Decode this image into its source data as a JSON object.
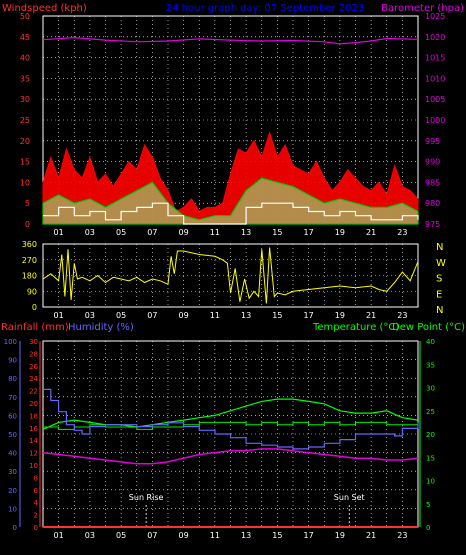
{
  "header": {
    "left_label": "Windspeed (kph)",
    "center_label": "24 hour graph day: 07 September 2023",
    "right_label": "Barometer (hpa)"
  },
  "colors": {
    "background": "#000000",
    "grid": "#ffffff",
    "wind_axis": "#ff3030",
    "baro_axis": "#e000e0",
    "wind_gust": "#ff0000",
    "wind_avg": "#00cc00",
    "wind_min": "#ffffff",
    "baro_line": "#e000e0",
    "direction": "#ffff00",
    "temp": "#00ff00",
    "dew": "#00ee00",
    "humidity": "#6666ff",
    "rain": "#ff3030",
    "title": "#0000ff"
  },
  "chart_data": [
    {
      "type": "line",
      "hours": [
        "01",
        "03",
        "05",
        "07",
        "09",
        "11",
        "13",
        "15",
        "17",
        "19",
        "21",
        "23"
      ],
      "left_axis": {
        "label": "Windspeed (kph)",
        "ticks": [
          0,
          5,
          10,
          15,
          20,
          25,
          30,
          35,
          40,
          45,
          50
        ],
        "range": [
          0,
          50
        ]
      },
      "right_axis": {
        "label": "Barometer (hpa)",
        "ticks": [
          975,
          980,
          985,
          990,
          995,
          1000,
          1005,
          1010,
          1015,
          1020,
          1025
        ],
        "range": [
          975,
          1025
        ]
      },
      "series": [
        {
          "role": "gust",
          "x": [
            0,
            0.5,
            1,
            1.5,
            2,
            2.5,
            3,
            3.5,
            4,
            4.5,
            5,
            5.5,
            6,
            6.5,
            7,
            7.5,
            8,
            8.5,
            9,
            9.5,
            10,
            10.5,
            11,
            11.5,
            12,
            12.5,
            13,
            13.5,
            14,
            14.5,
            15,
            15.5,
            16,
            16.5,
            17,
            17.5,
            18,
            18.5,
            19,
            19.5,
            20,
            20.5,
            21,
            21.5,
            22,
            22.5,
            23,
            23.5,
            24
          ],
          "y": [
            10,
            16,
            11,
            18,
            13,
            11,
            16,
            10,
            12,
            9,
            12,
            15,
            13,
            19,
            16,
            11,
            8,
            3,
            4,
            6,
            3,
            4,
            4,
            5,
            12,
            18,
            17,
            20,
            16,
            22,
            16,
            19,
            14,
            13,
            12,
            15,
            11,
            8,
            10,
            13,
            11,
            9,
            8,
            10,
            7,
            14,
            9,
            8,
            6
          ]
        },
        {
          "role": "average",
          "x": [
            0,
            1,
            2,
            3,
            4,
            5,
            6,
            7,
            8,
            9,
            10,
            11,
            12,
            13,
            14,
            15,
            16,
            17,
            18,
            19,
            20,
            21,
            22,
            23,
            24
          ],
          "y": [
            5,
            7,
            5,
            6,
            4,
            6,
            8,
            10,
            5,
            2,
            1,
            2,
            2,
            8,
            11,
            10,
            9,
            7,
            5,
            6,
            5,
            4,
            4,
            5,
            3
          ]
        },
        {
          "role": "minimum",
          "x": [
            0,
            1,
            2,
            3,
            4,
            5,
            6,
            7,
            8,
            9,
            10,
            11,
            12,
            13,
            14,
            15,
            16,
            17,
            18,
            19,
            20,
            21,
            22,
            23,
            24
          ],
          "y": [
            2,
            4,
            2,
            3,
            1,
            3,
            4,
            5,
            2,
            0,
            0,
            0,
            0,
            4,
            5,
            5,
            4,
            3,
            2,
            3,
            2,
            1,
            1,
            2,
            1
          ]
        },
        {
          "role": "barometer",
          "x": [
            0,
            2,
            4,
            6,
            8,
            10,
            12,
            14,
            16,
            18,
            19,
            20,
            21,
            22,
            24
          ],
          "y": [
            1019.3,
            1019.8,
            1019.2,
            1018.8,
            1019.0,
            1019.5,
            1019.2,
            1019.0,
            1019.1,
            1018.8,
            1018.3,
            1018.6,
            1019.0,
            1019.6,
            1019.4
          ]
        }
      ]
    },
    {
      "type": "line",
      "hours": [
        "01",
        "03",
        "05",
        "07",
        "09",
        "11",
        "13",
        "15",
        "17",
        "19",
        "21",
        "23"
      ],
      "left_axis": {
        "ticks": [
          0,
          90,
          180,
          270,
          360
        ],
        "range": [
          0,
          360
        ]
      },
      "right_axis": {
        "ticks": [
          "N",
          "W",
          "S",
          "E",
          "N"
        ]
      },
      "series": [
        {
          "role": "direction",
          "x": [
            0,
            0.5,
            1,
            1.2,
            1.4,
            1.6,
            1.8,
            2,
            2.2,
            2.5,
            3,
            3.5,
            4,
            4.5,
            5,
            5.5,
            6,
            6.5,
            7,
            7.5,
            8,
            8.2,
            8.4,
            8.6,
            9,
            10,
            11,
            11.5,
            11.8,
            12,
            12.3,
            12.6,
            12.9,
            13.2,
            13.5,
            13.8,
            14,
            14.3,
            14.5,
            14.8,
            15,
            15.5,
            16,
            17,
            18,
            19,
            20,
            21,
            21.5,
            22,
            22.5,
            23,
            23.5,
            24
          ],
          "y": [
            160,
            190,
            150,
            300,
            60,
            330,
            40,
            250,
            160,
            170,
            150,
            180,
            140,
            170,
            160,
            150,
            170,
            140,
            160,
            150,
            130,
            290,
            190,
            320,
            320,
            300,
            290,
            270,
            250,
            80,
            220,
            30,
            160,
            50,
            90,
            60,
            330,
            20,
            340,
            60,
            80,
            70,
            90,
            100,
            110,
            120,
            110,
            120,
            100,
            90,
            140,
            200,
            150,
            260
          ]
        }
      ]
    },
    {
      "type": "line",
      "hours": [
        "01",
        "03",
        "05",
        "07",
        "09",
        "11",
        "13",
        "15",
        "17",
        "19",
        "21",
        "23"
      ],
      "left_labels": [
        "Rainfall (mm)",
        "Humidity (%)"
      ],
      "right_labels": [
        "Temperature (°C)",
        "Dew Point (°C)"
      ],
      "humidity_axis": {
        "ticks": [
          0,
          10,
          20,
          30,
          40,
          50,
          60,
          70,
          80,
          90,
          100
        ],
        "range": [
          0,
          100
        ]
      },
      "rain_axis": {
        "ticks": [
          0,
          2,
          4,
          6,
          8,
          10,
          12,
          14,
          16,
          18,
          20,
          22,
          24,
          26,
          28,
          30
        ],
        "range": [
          0,
          30
        ]
      },
      "temp_axis": {
        "ticks": [
          0,
          5,
          10,
          15,
          20,
          25,
          30,
          35,
          40
        ],
        "range": [
          0,
          40
        ]
      },
      "annotations": [
        {
          "text": "Sun Rise",
          "x": 6.6
        },
        {
          "text": "Sun Set",
          "x": 19.6
        }
      ],
      "series": [
        {
          "role": "temperature",
          "x": [
            0,
            1,
            2,
            3,
            4,
            5,
            6,
            7,
            8,
            9,
            10,
            11,
            12,
            13,
            14,
            15,
            16,
            17,
            18,
            19,
            20,
            21,
            22,
            23,
            24
          ],
          "y": [
            21,
            22.5,
            23,
            22.5,
            22,
            22,
            21.5,
            22,
            22.5,
            23,
            23.5,
            24,
            25,
            26,
            27,
            27.5,
            27.5,
            27,
            26.5,
            25,
            24.5,
            24.5,
            25,
            23.5,
            23
          ]
        },
        {
          "role": "dew-point",
          "x": [
            0,
            1,
            2,
            3,
            4,
            5,
            6,
            7,
            8,
            9,
            10,
            11,
            12,
            13,
            14,
            15,
            16,
            17,
            18,
            19,
            20,
            21,
            22,
            23,
            24
          ],
          "y": [
            21.5,
            21,
            21.5,
            22,
            21.5,
            21.5,
            21,
            21.5,
            21.5,
            22,
            22.5,
            22.5,
            22.5,
            22,
            22.5,
            22,
            22.5,
            22,
            22.5,
            22,
            22.5,
            22.5,
            22,
            22,
            22.5
          ]
        },
        {
          "role": "humidity",
          "x": [
            0,
            0.5,
            1,
            1.5,
            2,
            2.5,
            3,
            4,
            5,
            6,
            7,
            8,
            9,
            10,
            11,
            12,
            13,
            14,
            15,
            16,
            17,
            18,
            19,
            20,
            21,
            22,
            22.5,
            23,
            24
          ],
          "y": [
            74,
            68,
            62,
            55,
            52,
            50,
            54,
            55,
            55,
            54,
            55,
            56,
            54,
            52,
            50,
            48,
            45,
            44,
            43,
            42,
            43,
            45,
            47,
            50,
            50,
            50,
            49,
            53,
            56
          ]
        },
        {
          "role": "rain",
          "x": [
            0,
            24
          ],
          "y": [
            0,
            0
          ]
        },
        {
          "role": "humidity-lower",
          "x": [
            0,
            1,
            2,
            3,
            4,
            5,
            6,
            7,
            8,
            9,
            10,
            11,
            12,
            13,
            14,
            15,
            16,
            17,
            18,
            19,
            20,
            21,
            22,
            23,
            24
          ],
          "y": [
            40,
            39,
            38,
            37,
            36,
            35,
            34,
            34,
            35,
            37,
            39,
            40,
            41,
            41,
            42,
            42,
            41,
            40,
            39,
            38,
            37,
            37,
            36,
            36,
            37
          ]
        }
      ]
    }
  ]
}
